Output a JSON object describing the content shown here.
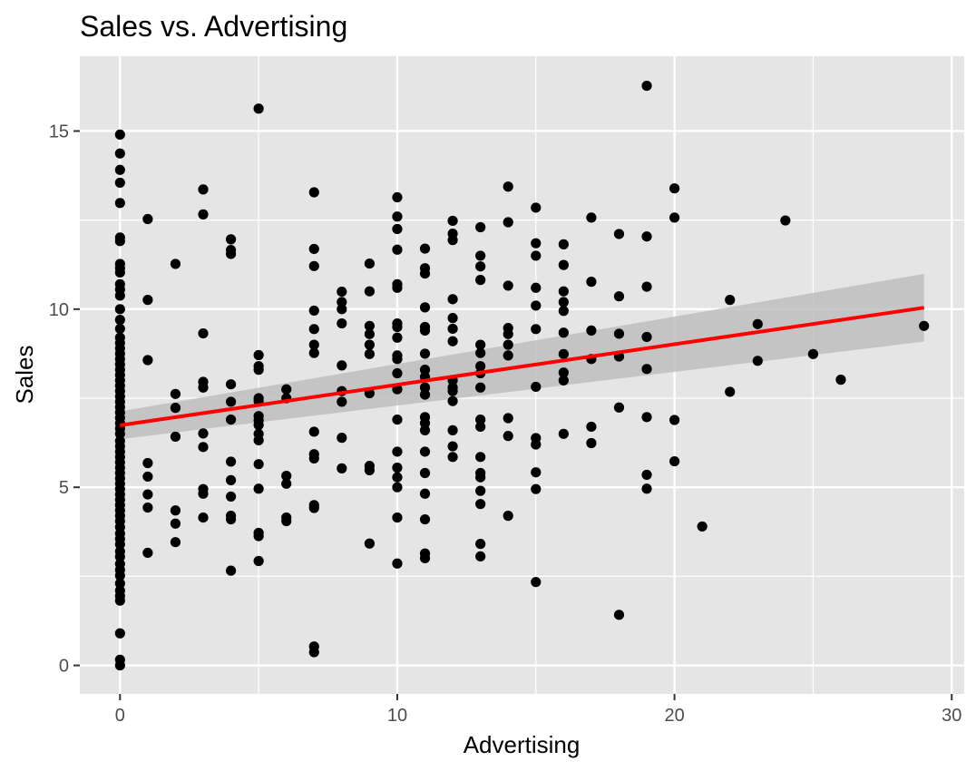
{
  "chart_data": {
    "type": "scatter",
    "title": "Sales vs. Advertising",
    "xlabel": "Advertising",
    "ylabel": "Sales",
    "xlim": [
      -1.45,
      30.45
    ],
    "ylim": [
      -0.8,
      17.1
    ],
    "x_ticks": [
      0,
      10,
      20,
      30
    ],
    "y_ticks": [
      0,
      5,
      10,
      15
    ],
    "x_tick_labels": [
      "0",
      "10",
      "20",
      "30"
    ],
    "y_tick_labels": [
      "0",
      "5",
      "10",
      "15"
    ],
    "grid": true,
    "legend": "none",
    "colors": {
      "panel": "#e5e5e5",
      "grid": "#ffffff",
      "points": "#000000",
      "fit_line": "#ff0000",
      "confidence_band": "#bebebe"
    },
    "fit": {
      "method": "linear",
      "x": [
        0,
        29
      ],
      "y": [
        6.74,
        10.04
      ],
      "ci_lower": [
        6.35,
        9.09
      ],
      "ci_upper": [
        7.13,
        10.99
      ]
    },
    "points": [
      [
        0,
        14.9
      ],
      [
        0,
        14.37
      ],
      [
        0,
        13.91
      ],
      [
        0,
        13.55
      ],
      [
        0,
        12.98
      ],
      [
        0,
        12.01
      ],
      [
        0,
        11.91
      ],
      [
        0,
        11.27
      ],
      [
        0,
        11.15
      ],
      [
        0,
        11.03
      ],
      [
        0,
        10.7
      ],
      [
        0,
        10.55
      ],
      [
        0,
        10.38
      ],
      [
        0,
        10.0
      ],
      [
        0,
        9.7
      ],
      [
        0,
        9.45
      ],
      [
        0,
        9.2
      ],
      [
        0,
        9.05
      ],
      [
        0,
        8.9
      ],
      [
        0,
        8.75
      ],
      [
        0,
        8.6
      ],
      [
        0,
        8.45
      ],
      [
        0,
        8.3
      ],
      [
        0,
        8.15
      ],
      [
        0,
        8.0
      ],
      [
        0,
        7.85
      ],
      [
        0,
        7.7
      ],
      [
        0,
        7.55
      ],
      [
        0,
        7.4
      ],
      [
        0,
        7.25
      ],
      [
        0,
        7.1
      ],
      [
        0,
        6.95
      ],
      [
        0,
        6.8
      ],
      [
        0,
        6.65
      ],
      [
        0,
        6.5
      ],
      [
        0,
        6.3
      ],
      [
        0,
        6.15
      ],
      [
        0,
        6.0
      ],
      [
        0,
        5.85
      ],
      [
        0,
        5.7
      ],
      [
        0,
        5.55
      ],
      [
        0,
        5.4
      ],
      [
        0,
        5.25
      ],
      [
        0,
        5.1
      ],
      [
        0,
        4.95
      ],
      [
        0,
        4.8
      ],
      [
        0,
        4.65
      ],
      [
        0,
        4.5
      ],
      [
        0,
        4.35
      ],
      [
        0,
        4.2
      ],
      [
        0,
        4.05
      ],
      [
        0,
        3.88
      ],
      [
        0,
        3.7
      ],
      [
        0,
        3.55
      ],
      [
        0,
        3.4
      ],
      [
        0,
        3.2
      ],
      [
        0,
        3.05
      ],
      [
        0,
        2.85
      ],
      [
        0,
        2.68
      ],
      [
        0,
        2.52
      ],
      [
        0,
        2.3
      ],
      [
        0,
        2.1
      ],
      [
        0,
        1.95
      ],
      [
        0,
        1.82
      ],
      [
        0,
        0.9
      ],
      [
        0,
        0.16
      ],
      [
        0,
        0.0
      ],
      [
        1,
        12.53
      ],
      [
        1,
        10.26
      ],
      [
        1,
        8.57
      ],
      [
        1,
        5.68
      ],
      [
        1,
        5.3
      ],
      [
        1,
        4.8
      ],
      [
        1,
        4.43
      ],
      [
        1,
        3.16
      ],
      [
        2,
        11.27
      ],
      [
        2,
        7.62
      ],
      [
        2,
        7.23
      ],
      [
        2,
        6.42
      ],
      [
        2,
        4.35
      ],
      [
        2,
        3.98
      ],
      [
        2,
        3.46
      ],
      [
        3,
        13.36
      ],
      [
        3,
        12.66
      ],
      [
        3,
        9.32
      ],
      [
        3,
        7.96
      ],
      [
        3,
        7.8
      ],
      [
        3,
        6.51
      ],
      [
        3,
        6.13
      ],
      [
        3,
        4.95
      ],
      [
        3,
        4.82
      ],
      [
        3,
        4.15
      ],
      [
        4,
        11.96
      ],
      [
        4,
        11.66
      ],
      [
        4,
        11.55
      ],
      [
        4,
        7.89
      ],
      [
        4,
        7.4
      ],
      [
        4,
        6.9
      ],
      [
        4,
        5.72
      ],
      [
        4,
        5.2
      ],
      [
        4,
        4.74
      ],
      [
        4,
        4.2
      ],
      [
        4,
        4.1
      ],
      [
        4,
        2.66
      ],
      [
        5,
        15.63
      ],
      [
        5,
        8.71
      ],
      [
        5,
        8.4
      ],
      [
        5,
        8.3
      ],
      [
        5,
        7.5
      ],
      [
        5,
        7.42
      ],
      [
        5,
        7.0
      ],
      [
        5,
        6.88
      ],
      [
        5,
        6.75
      ],
      [
        5,
        6.5
      ],
      [
        5,
        6.32
      ],
      [
        5,
        5.65
      ],
      [
        5,
        4.96
      ],
      [
        5,
        3.72
      ],
      [
        5,
        3.63
      ],
      [
        5,
        2.93
      ],
      [
        6,
        7.75
      ],
      [
        6,
        7.5
      ],
      [
        6,
        5.32
      ],
      [
        6,
        5.1
      ],
      [
        6,
        4.15
      ],
      [
        6,
        4.05
      ],
      [
        7,
        13.28
      ],
      [
        7,
        11.69
      ],
      [
        7,
        11.21
      ],
      [
        7,
        9.96
      ],
      [
        7,
        9.44
      ],
      [
        7,
        9.0
      ],
      [
        7,
        8.77
      ],
      [
        7,
        6.56
      ],
      [
        7,
        5.93
      ],
      [
        7,
        5.81
      ],
      [
        7,
        4.5
      ],
      [
        7,
        4.42
      ],
      [
        7,
        0.53
      ],
      [
        7,
        0.37
      ],
      [
        8,
        10.49
      ],
      [
        8,
        10.2
      ],
      [
        8,
        10.0
      ],
      [
        8,
        9.6
      ],
      [
        8,
        8.42
      ],
      [
        8,
        7.7
      ],
      [
        8,
        7.4
      ],
      [
        8,
        6.39
      ],
      [
        8,
        5.53
      ],
      [
        9,
        11.28
      ],
      [
        9,
        10.5
      ],
      [
        9,
        9.53
      ],
      [
        9,
        9.3
      ],
      [
        9,
        9.0
      ],
      [
        9,
        8.74
      ],
      [
        9,
        7.64
      ],
      [
        9,
        5.6
      ],
      [
        9,
        5.48
      ],
      [
        9,
        3.42
      ],
      [
        10,
        13.14
      ],
      [
        10,
        12.6
      ],
      [
        10,
        12.25
      ],
      [
        10,
        11.67
      ],
      [
        10,
        10.7
      ],
      [
        10,
        10.6
      ],
      [
        10,
        9.6
      ],
      [
        10,
        9.5
      ],
      [
        10,
        9.2
      ],
      [
        10,
        8.7
      ],
      [
        10,
        8.6
      ],
      [
        10,
        8.2
      ],
      [
        10,
        7.75
      ],
      [
        10,
        6.9
      ],
      [
        10,
        6.0
      ],
      [
        10,
        5.55
      ],
      [
        10,
        5.28
      ],
      [
        10,
        5.0
      ],
      [
        10,
        4.15
      ],
      [
        10,
        2.86
      ],
      [
        11,
        11.7
      ],
      [
        11,
        11.15
      ],
      [
        11,
        11.0
      ],
      [
        11,
        10.05
      ],
      [
        11,
        9.5
      ],
      [
        11,
        9.4
      ],
      [
        11,
        8.75
      ],
      [
        11,
        8.3
      ],
      [
        11,
        8.1
      ],
      [
        11,
        7.8
      ],
      [
        11,
        7.6
      ],
      [
        11,
        6.97
      ],
      [
        11,
        6.8
      ],
      [
        11,
        6.6
      ],
      [
        11,
        6.0
      ],
      [
        11,
        5.4
      ],
      [
        11,
        4.82
      ],
      [
        11,
        4.1
      ],
      [
        11,
        3.14
      ],
      [
        11,
        3.01
      ],
      [
        12,
        12.48
      ],
      [
        12,
        12.12
      ],
      [
        12,
        11.94
      ],
      [
        12,
        10.28
      ],
      [
        12,
        9.75
      ],
      [
        12,
        9.45
      ],
      [
        12,
        9.1
      ],
      [
        12,
        8.0
      ],
      [
        12,
        7.8
      ],
      [
        12,
        7.7
      ],
      [
        12,
        7.42
      ],
      [
        12,
        6.6
      ],
      [
        12,
        6.15
      ],
      [
        12,
        5.85
      ],
      [
        13,
        12.3
      ],
      [
        13,
        11.5
      ],
      [
        13,
        11.2
      ],
      [
        13,
        10.82
      ],
      [
        13,
        9.0
      ],
      [
        13,
        8.77
      ],
      [
        13,
        8.4
      ],
      [
        13,
        8.2
      ],
      [
        13,
        7.8
      ],
      [
        13,
        6.9
      ],
      [
        13,
        6.7
      ],
      [
        13,
        5.85
      ],
      [
        13,
        5.4
      ],
      [
        13,
        5.28
      ],
      [
        13,
        4.9
      ],
      [
        13,
        4.53
      ],
      [
        13,
        3.41
      ],
      [
        13,
        3.06
      ],
      [
        14,
        13.44
      ],
      [
        14,
        12.44
      ],
      [
        14,
        10.66
      ],
      [
        14,
        9.47
      ],
      [
        14,
        9.3
      ],
      [
        14,
        9.0
      ],
      [
        14,
        8.7
      ],
      [
        14,
        6.94
      ],
      [
        14,
        6.44
      ],
      [
        14,
        4.2
      ],
      [
        15,
        12.85
      ],
      [
        15,
        11.85
      ],
      [
        15,
        11.5
      ],
      [
        15,
        10.6
      ],
      [
        15,
        10.1
      ],
      [
        15,
        9.44
      ],
      [
        15,
        7.82
      ],
      [
        15,
        6.38
      ],
      [
        15,
        6.2
      ],
      [
        15,
        5.42
      ],
      [
        15,
        4.95
      ],
      [
        15,
        2.34
      ],
      [
        16,
        11.82
      ],
      [
        16,
        11.24
      ],
      [
        16,
        10.5
      ],
      [
        16,
        10.2
      ],
      [
        16,
        9.95
      ],
      [
        16,
        9.34
      ],
      [
        16,
        8.74
      ],
      [
        16,
        8.22
      ],
      [
        16,
        8.0
      ],
      [
        16,
        6.5
      ],
      [
        17,
        12.57
      ],
      [
        17,
        10.77
      ],
      [
        17,
        9.4
      ],
      [
        17,
        8.6
      ],
      [
        17,
        6.7
      ],
      [
        17,
        6.24
      ],
      [
        18,
        12.11
      ],
      [
        18,
        10.36
      ],
      [
        18,
        9.31
      ],
      [
        18,
        8.67
      ],
      [
        18,
        7.24
      ],
      [
        18,
        1.42
      ],
      [
        19,
        16.27
      ],
      [
        19,
        12.04
      ],
      [
        19,
        10.63
      ],
      [
        19,
        9.22
      ],
      [
        19,
        8.32
      ],
      [
        19,
        6.97
      ],
      [
        19,
        5.35
      ],
      [
        19,
        4.96
      ],
      [
        20,
        13.39
      ],
      [
        20,
        12.57
      ],
      [
        20,
        6.89
      ],
      [
        20,
        5.73
      ],
      [
        21,
        3.9
      ],
      [
        22,
        10.26
      ],
      [
        22,
        7.68
      ],
      [
        23,
        9.58
      ],
      [
        23,
        8.55
      ],
      [
        24,
        12.49
      ],
      [
        25,
        8.74
      ],
      [
        26,
        8.02
      ],
      [
        29,
        9.53
      ]
    ]
  }
}
